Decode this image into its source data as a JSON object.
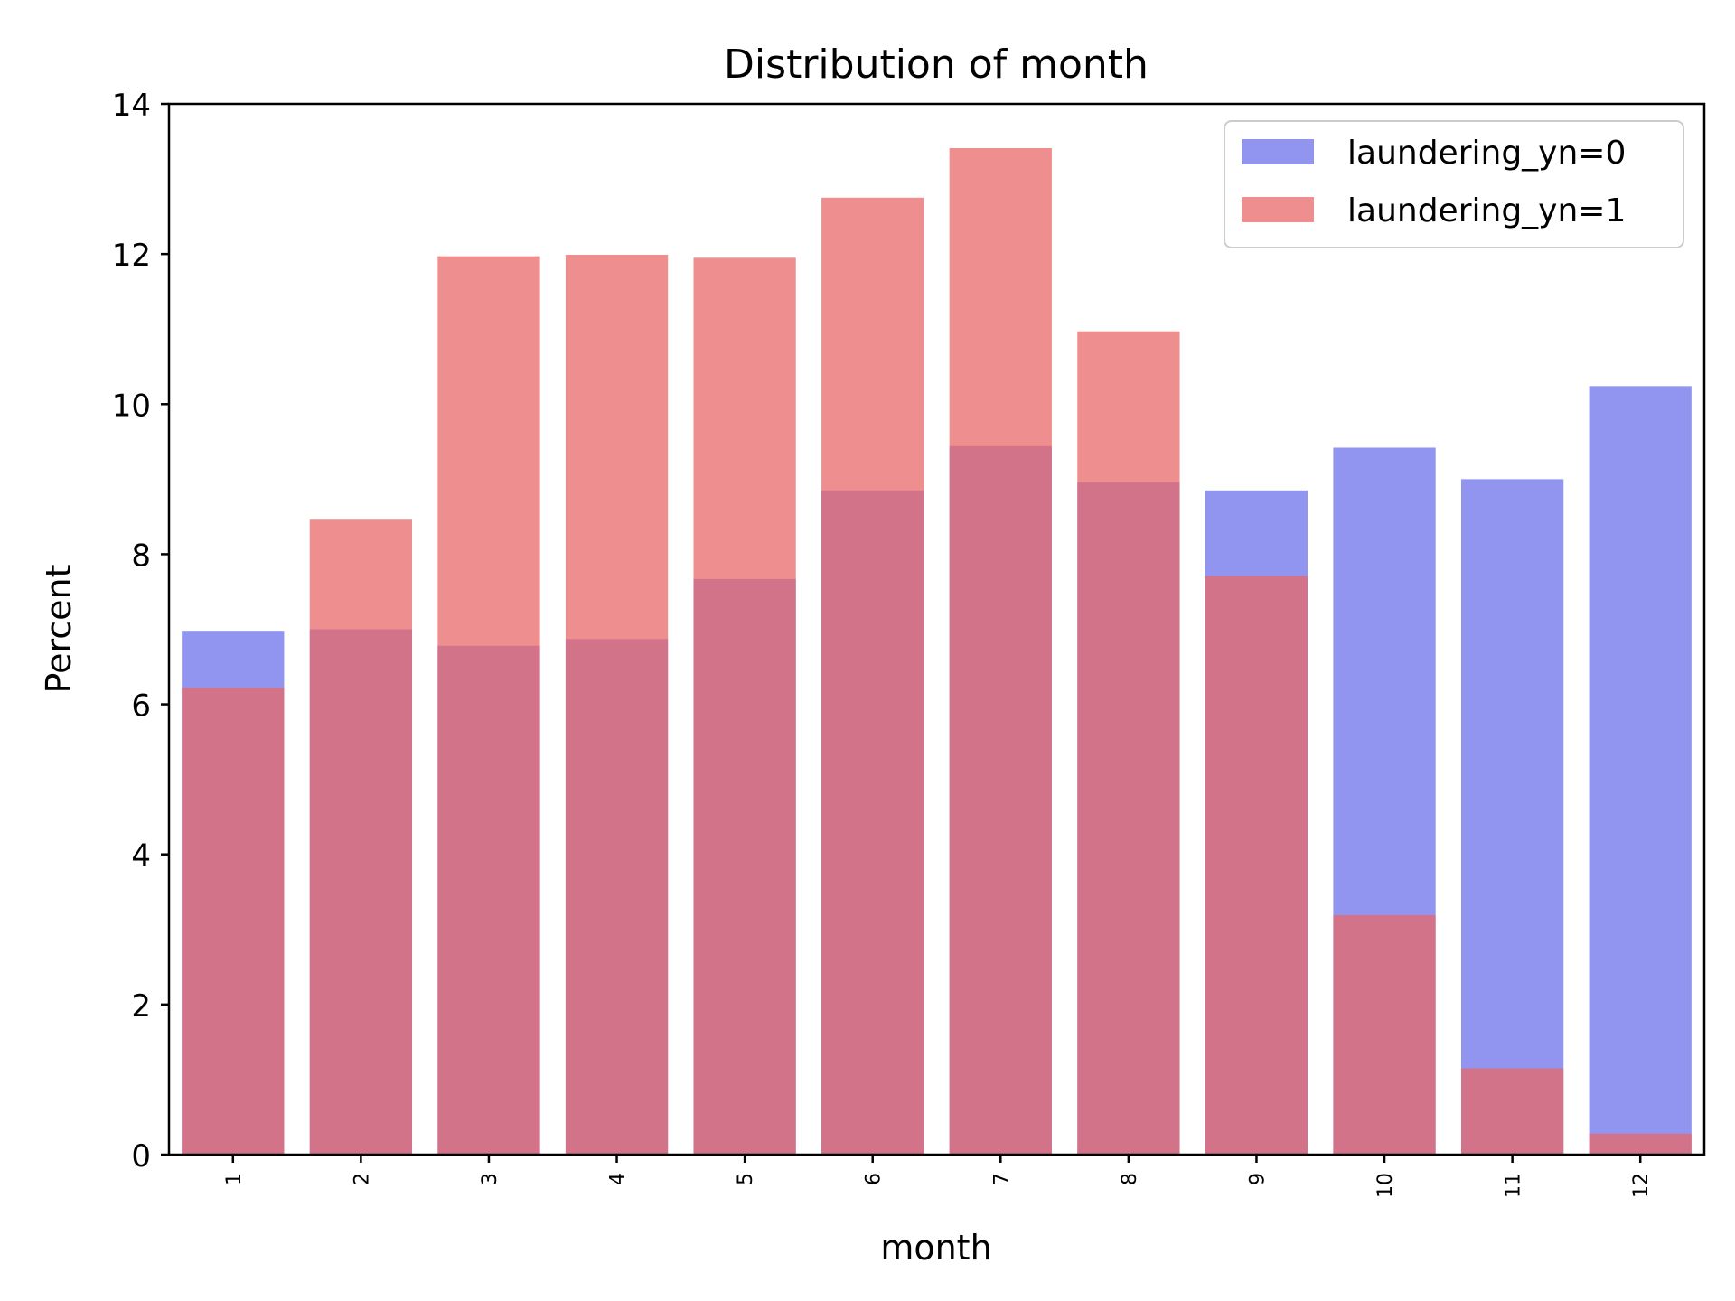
{
  "chart_data": {
    "type": "bar",
    "title": "Distribution of month",
    "xlabel": "month",
    "ylabel": "Percent",
    "categories": [
      "1",
      "2",
      "3",
      "4",
      "5",
      "6",
      "7",
      "8",
      "9",
      "10",
      "11",
      "12"
    ],
    "series": [
      {
        "name": "laundering_yn=0",
        "color": "#6c72eb",
        "values": [
          6.98,
          7.0,
          6.78,
          6.87,
          7.67,
          8.85,
          9.44,
          8.96,
          8.85,
          9.42,
          9.0,
          10.24
        ]
      },
      {
        "name": "laundering_yn=1",
        "color": "#e86868",
        "values": [
          6.22,
          8.46,
          11.97,
          11.99,
          11.95,
          12.75,
          13.41,
          10.97,
          7.71,
          3.19,
          1.15,
          0.28
        ]
      }
    ],
    "ylim": [
      0,
      14
    ],
    "yticks": [
      0,
      2,
      4,
      6,
      8,
      10,
      12,
      14
    ],
    "grid": false,
    "legend_position": "top-right"
  }
}
